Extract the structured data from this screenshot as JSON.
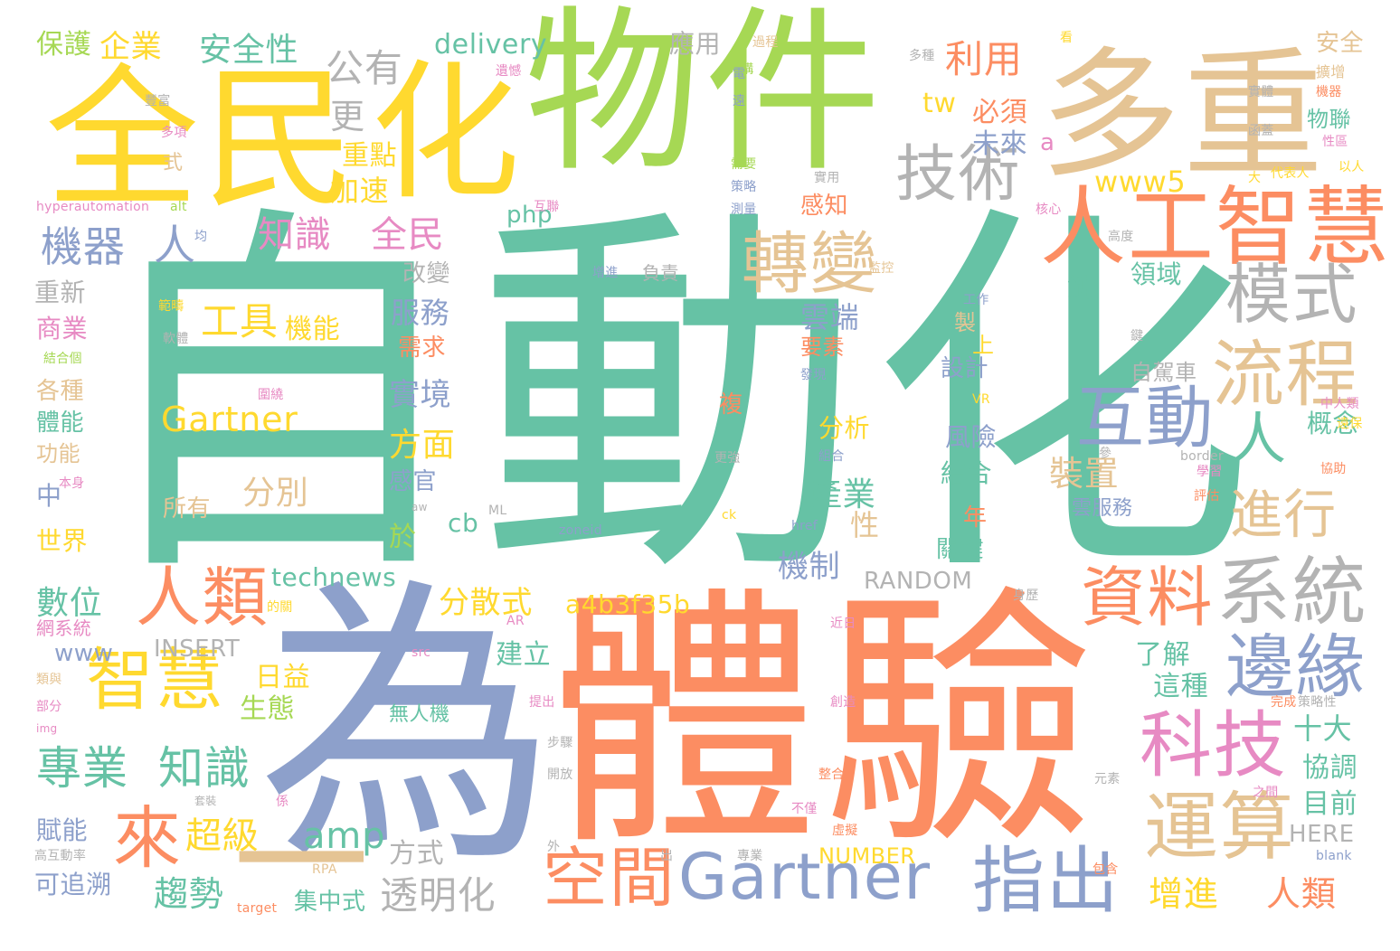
{
  "word_cloud": {
    "big": [
      "自動化",
      "為",
      "體驗",
      "物件",
      "全民",
      "化",
      "多重",
      "人工智慧",
      "Gartner"
    ],
    "mid": [
      "技術",
      "轉變",
      "模式",
      "流程",
      "互動",
      "系統",
      "資料",
      "邊緣",
      "運算",
      "指出",
      "空間",
      "科技",
      "人類",
      "智慧",
      "來",
      "專業",
      "知識",
      "進行",
      "人",
      "一",
      "機器",
      "人"
    ],
    "small": [
      "保護",
      "企業",
      "安全性",
      "delivery",
      "應用",
      "安全",
      "公有",
      "利用",
      "必須",
      "未來",
      "更",
      "重點",
      "加速",
      "tw",
      "www5",
      "php",
      "Gartner",
      "工具",
      "機能",
      "知識",
      "全民",
      "服務",
      "實境",
      "方面",
      "分別",
      "產業",
      "年",
      "機制",
      "RANDOM",
      "technews",
      "分散式",
      "a4b3f35b",
      "數位",
      "www",
      "INSERT",
      "建立",
      "了解",
      "這種",
      "生態",
      "日益",
      "超級",
      "amp",
      "方式",
      "NUMBER",
      "趨勢",
      "透明化",
      "集中式",
      "增進",
      "人類",
      "HERE",
      "目前",
      "協調",
      "十大",
      "賦能",
      "可追溯",
      "世界",
      "功能",
      "體能",
      "各種",
      "商業",
      "重新",
      "改變",
      "需求",
      "感官",
      "所有",
      "雲端",
      "要素",
      "分析",
      "風險",
      "結合",
      "關鍵",
      "自駕車",
      "設計",
      "上",
      "鏈",
      "領域",
      "物聯",
      "概念",
      "裝置",
      "雲服務",
      "無人機",
      "cb",
      "於",
      "感知",
      "a",
      "n",
      "複",
      "製",
      "中",
      "式",
      "性"
    ],
    "tiny": [
      "hyperautomation",
      "alt",
      "過程",
      "遺憾",
      "共構",
      "豐富",
      "多項",
      "互聯",
      "需要",
      "策略",
      "測量",
      "增進",
      "負責",
      "監控",
      "核心",
      "高度",
      "代表人",
      "以人",
      "性區",
      "函蓋",
      "機器",
      "擴增",
      "實體",
      "多種",
      "實用",
      "工作",
      "範疇",
      "軟體",
      "結合個",
      "圍繞",
      "發現",
      "組合",
      "更強",
      "VR",
      "中人類",
      "遠保",
      "學習",
      "協助",
      "評估",
      "border",
      "ck",
      "href",
      "zoneid",
      "身歷",
      "ML",
      "aw",
      "本身",
      "近日",
      "AR",
      "src",
      "類與",
      "部分",
      "img",
      "提出",
      "步驟",
      "開放",
      "整合",
      "創造",
      "完成",
      "策略性",
      "元素",
      "之間",
      "虛擬",
      "不僅",
      "專業",
      "包含",
      "blank",
      "target",
      "RPA",
      "高互動率",
      "外",
      "出",
      "網系統",
      "的關",
      "係",
      "套裝",
      "均",
      "大",
      "遠",
      "參",
      "鍵",
      "電",
      "看"
    ]
  }
}
